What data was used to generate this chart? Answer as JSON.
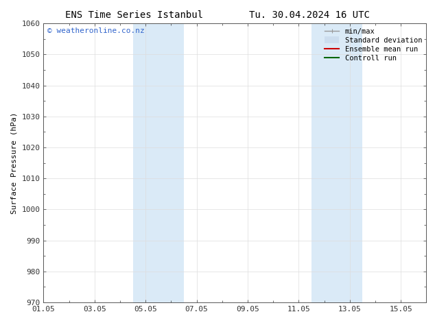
{
  "title_left": "ENS Time Series Istanbul",
  "title_right": "Tu. 30.04.2024 16 UTC",
  "ylabel": "Surface Pressure (hPa)",
  "ylim": [
    970,
    1060
  ],
  "yticks": [
    970,
    980,
    990,
    1000,
    1010,
    1020,
    1030,
    1040,
    1050,
    1060
  ],
  "xtick_labels": [
    "01.05",
    "03.05",
    "05.05",
    "07.05",
    "09.05",
    "11.05",
    "13.05",
    "15.05"
  ],
  "xtick_positions": [
    0,
    2,
    4,
    6,
    8,
    10,
    12,
    14
  ],
  "xlim": [
    0,
    15
  ],
  "shaded_bands": [
    {
      "x_start": 3.5,
      "x_end": 5.5
    },
    {
      "x_start": 10.5,
      "x_end": 12.5
    }
  ],
  "shaded_color": "#daeaf7",
  "watermark_text": "© weatheronline.co.nz",
  "watermark_color": "#3366cc",
  "legend_items": [
    {
      "label": "min/max",
      "color": "#999999",
      "linestyle": "-",
      "linewidth": 1.0
    },
    {
      "label": "Standard deviation",
      "color": "#ccddee",
      "linestyle": "-",
      "linewidth": 7
    },
    {
      "label": "Ensemble mean run",
      "color": "#cc0000",
      "linestyle": "-",
      "linewidth": 1.5
    },
    {
      "label": "Controll run",
      "color": "#006600",
      "linestyle": "-",
      "linewidth": 1.5
    }
  ],
  "bg_color": "#ffffff",
  "grid_color": "#dddddd",
  "tick_color": "#333333",
  "font_size": 8,
  "title_font_size": 10,
  "watermark_font_size": 8
}
